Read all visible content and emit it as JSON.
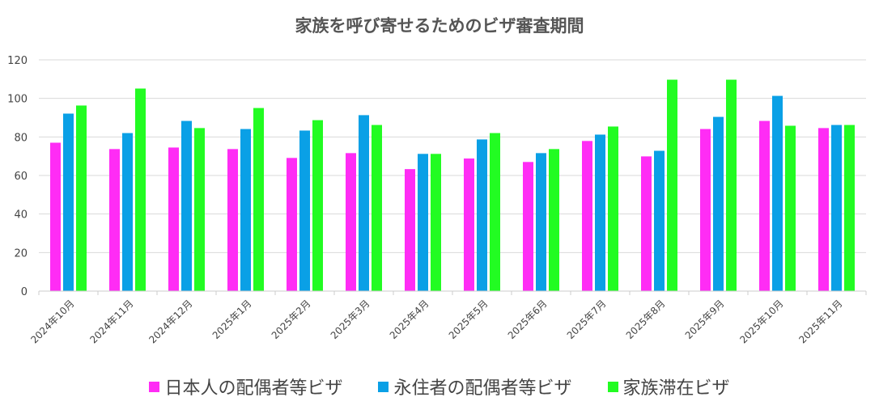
{
  "chart_data": {
    "type": "bar",
    "title": "家族を呼び寄せるためのビザ審査期間",
    "xlabel": "",
    "ylabel": "",
    "ylim": [
      0,
      120
    ],
    "yticks": [
      0,
      20,
      40,
      60,
      80,
      100,
      120
    ],
    "grid": true,
    "legend_position": "bottom",
    "categories": [
      "2024年10月",
      "2024年11月",
      "2024年12月",
      "2025年1月",
      "2025年2月",
      "2025年3月",
      "2025年4月",
      "2025年5月",
      "2025年6月",
      "2025年7月",
      "2025年8月",
      "2025年9月",
      "2025年10月",
      "2025年11月"
    ],
    "series": [
      {
        "name": "日本人の配偶者等ビザ",
        "color": "#ff2cf5",
        "values": [
          77.0,
          73.7,
          74.5,
          73.7,
          69.1,
          71.6,
          63.3,
          68.8,
          67.0,
          77.9,
          69.9,
          84.1,
          88.3,
          84.6
        ]
      },
      {
        "name": "永住者の配偶者等ビザ",
        "color": "#0aa0e6",
        "values": [
          92.1,
          82.0,
          88.3,
          84.1,
          83.3,
          91.3,
          71.2,
          78.7,
          71.6,
          81.2,
          72.8,
          90.4,
          101.3,
          86.2
        ]
      },
      {
        "name": "家族滞在ビザ",
        "color": "#22fc22",
        "values": [
          96.3,
          105.1,
          84.6,
          95.0,
          88.7,
          86.2,
          71.2,
          82.0,
          73.7,
          85.4,
          109.7,
          109.7,
          85.8,
          86.2
        ]
      }
    ]
  }
}
